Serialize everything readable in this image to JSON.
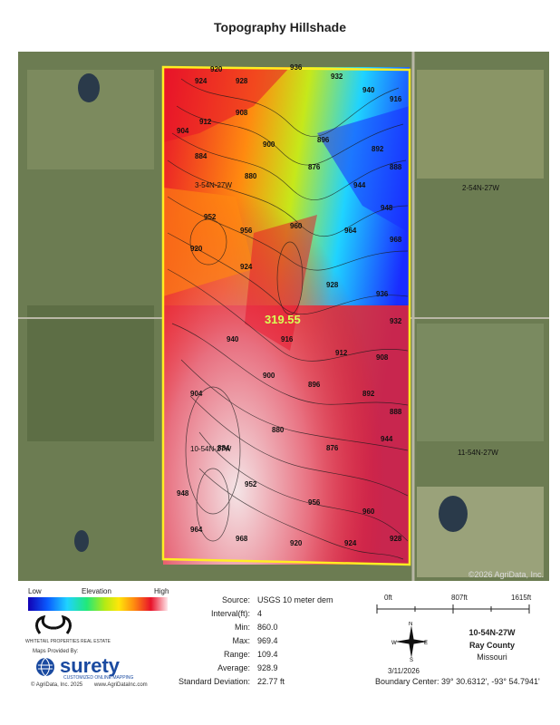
{
  "title": "Topography Hillshade",
  "map": {
    "copyright": "©2026 AgriData, Inc.",
    "center_label": "319.55",
    "section_labels": [
      "3-54N-27W",
      "2-54N-27W",
      "10-54N-27W",
      "11-54N-27W"
    ],
    "contour_labels": [
      "920",
      "924",
      "928",
      "936",
      "932",
      "940",
      "916",
      "912",
      "908",
      "904",
      "900",
      "896",
      "892",
      "888",
      "884",
      "880",
      "876",
      "944",
      "948",
      "952",
      "956",
      "960",
      "964",
      "968"
    ]
  },
  "legend": {
    "low": "Low",
    "mid": "Elevation",
    "high": "High"
  },
  "stats": {
    "source_label": "Source:",
    "source_value": "USGS 10 meter dem",
    "interval_label": "Interval(ft):",
    "interval_value": "4",
    "min_label": "Min:",
    "min_value": "860.0",
    "max_label": "Max:",
    "max_value": "969.4",
    "range_label": "Range:",
    "range_value": "109.4",
    "average_label": "Average:",
    "average_value": "928.9",
    "sd_label": "Standard Deviation:",
    "sd_value": "22.77 ft"
  },
  "scale": {
    "zero": "0ft",
    "mid": "807ft",
    "end": "1615ft"
  },
  "location": {
    "section": "10-54N-27W",
    "county": "Ray County",
    "state": "Missouri",
    "date": "3/11/2026",
    "boundary_center": "Boundary Center: 39° 30.6312', -93° 54.7941'"
  },
  "logos": {
    "whitetail": "WHITETAIL PROPERTIES REAL ESTATE",
    "maps_by": "Maps Provided By:",
    "surety": "surety",
    "surety_tag": "CUSTOMIZED ONLINE MAPPING",
    "agridata": "© AgriData, Inc. 2025",
    "agridata_url": "www.AgriDataInc.com"
  }
}
